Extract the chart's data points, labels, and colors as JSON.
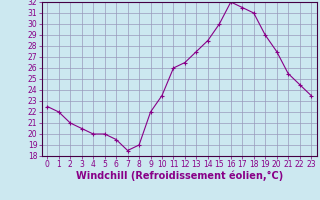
{
  "x": [
    0,
    1,
    2,
    3,
    4,
    5,
    6,
    7,
    8,
    9,
    10,
    11,
    12,
    13,
    14,
    15,
    16,
    17,
    18,
    19,
    20,
    21,
    22,
    23
  ],
  "y": [
    22.5,
    22.0,
    21.0,
    20.5,
    20.0,
    20.0,
    19.5,
    18.5,
    19.0,
    22.0,
    23.5,
    26.0,
    26.5,
    27.5,
    28.5,
    30.0,
    32.0,
    31.5,
    31.0,
    29.0,
    27.5,
    25.5,
    24.5,
    23.5
  ],
  "ylim": [
    18,
    32
  ],
  "yticks": [
    18,
    19,
    20,
    21,
    22,
    23,
    24,
    25,
    26,
    27,
    28,
    29,
    30,
    31,
    32
  ],
  "xlim": [
    -0.5,
    23.5
  ],
  "xticks": [
    0,
    1,
    2,
    3,
    4,
    5,
    6,
    7,
    8,
    9,
    10,
    11,
    12,
    13,
    14,
    15,
    16,
    17,
    18,
    19,
    20,
    21,
    22,
    23
  ],
  "line_color": "#880088",
  "marker": "+",
  "bg_color": "#cce8f0",
  "grid_color": "#9999bb",
  "xlabel": "Windchill (Refroidissement éolien,°C)",
  "tick_fontsize": 5.5,
  "label_fontsize": 7
}
